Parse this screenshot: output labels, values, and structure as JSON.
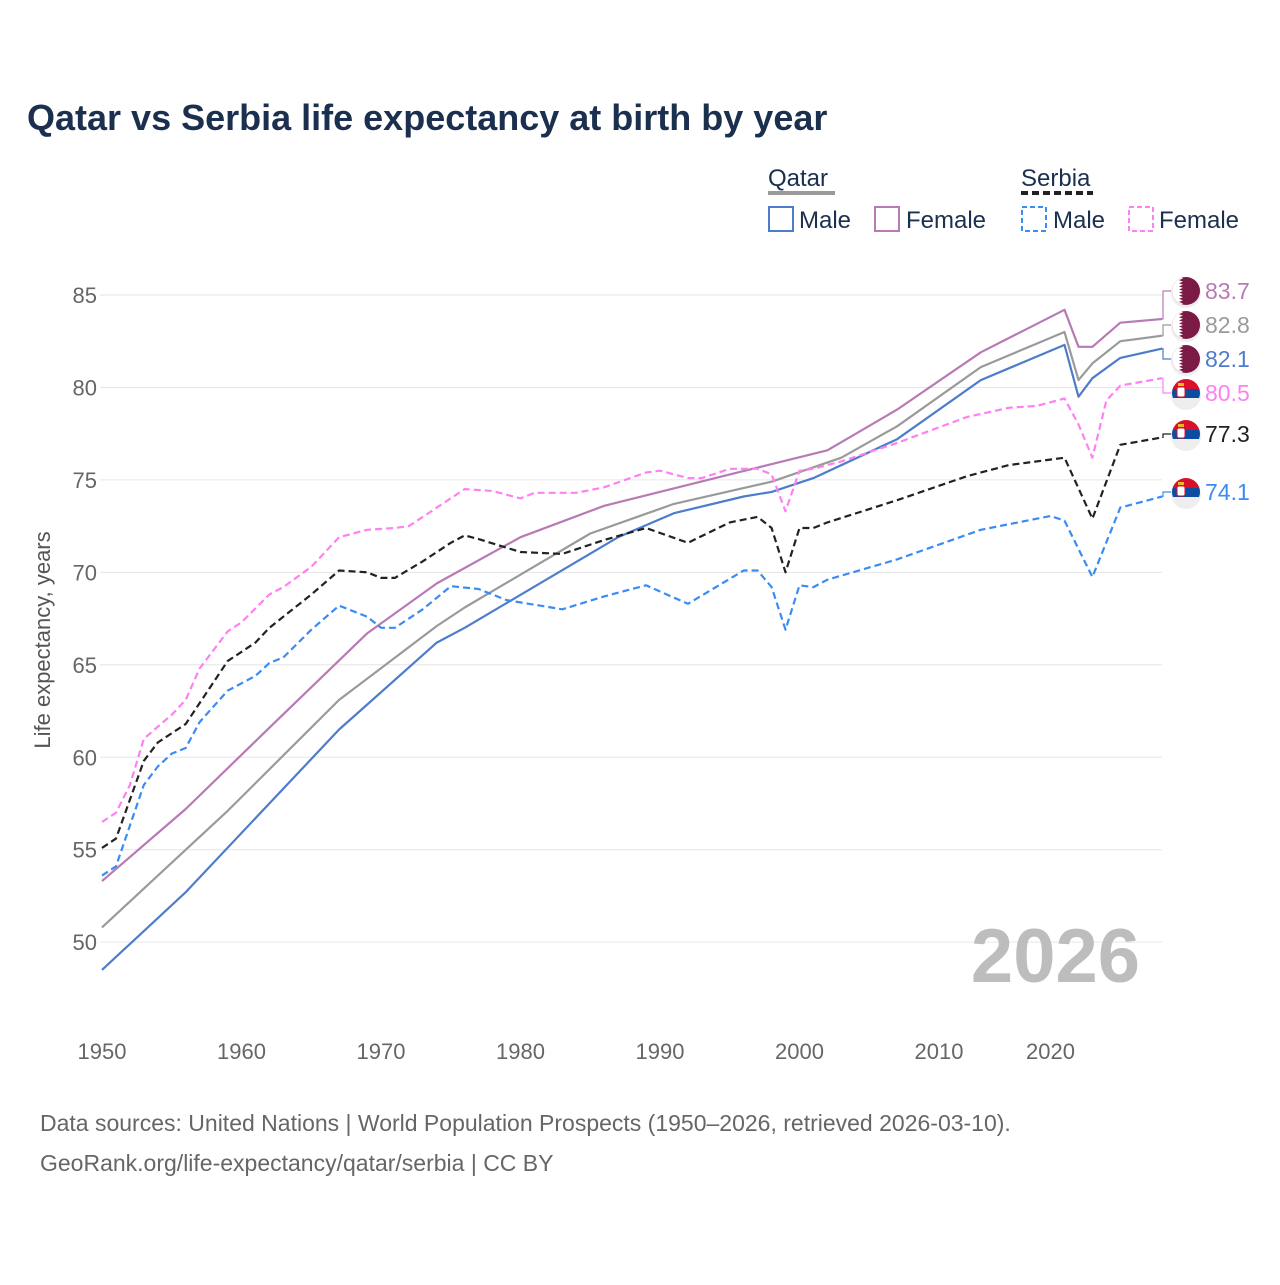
{
  "chart_data": {
    "type": "line",
    "title": "Qatar vs Serbia life expectancy at birth by year",
    "xlabel": "",
    "ylabel": "Life expectancy, years",
    "xlim": [
      1950,
      2026
    ],
    "ylim": [
      47,
      87
    ],
    "x_ticks": [
      "1950",
      "1960",
      "1970",
      "1980",
      "1990",
      "2000",
      "2010",
      "2020"
    ],
    "y_ticks": [
      "50",
      "55",
      "60",
      "65",
      "70",
      "75",
      "80",
      "85"
    ],
    "grid": true,
    "watermark_year": "2026",
    "legend": {
      "placement": "top-right",
      "groups": [
        {
          "country": "Qatar",
          "items": [
            "Male",
            "Female"
          ]
        },
        {
          "country": "Serbia",
          "items": [
            "Male",
            "Female"
          ]
        }
      ]
    },
    "series": [
      {
        "name": "Qatar Female",
        "country": "Qatar",
        "color": "#b77ab5",
        "dashed": false,
        "end_label": "83.7",
        "points": [
          [
            1950,
            53.3
          ],
          [
            1956,
            57.2
          ],
          [
            1962,
            61.6
          ],
          [
            1969,
            66.7
          ],
          [
            1974,
            69.4
          ],
          [
            1980,
            71.9
          ],
          [
            1986,
            73.6
          ],
          [
            1995,
            75.3
          ],
          [
            2002,
            76.6
          ],
          [
            2007,
            78.8
          ],
          [
            2013,
            81.9
          ],
          [
            2019,
            84.2
          ],
          [
            2020,
            82.2
          ],
          [
            2021,
            82.2
          ],
          [
            2023,
            83.5
          ],
          [
            2026,
            83.7
          ]
        ]
      },
      {
        "name": "Qatar Total",
        "country": "Qatar",
        "color": "#9a9a9a",
        "dashed": false,
        "end_label": "82.8",
        "points": [
          [
            1950,
            50.8
          ],
          [
            1959,
            57.1
          ],
          [
            1967,
            63.1
          ],
          [
            1974,
            67.1
          ],
          [
            1976,
            68.1
          ],
          [
            1985,
            72.1
          ],
          [
            1991,
            73.7
          ],
          [
            1998,
            74.9
          ],
          [
            2003,
            76.2
          ],
          [
            2007,
            77.9
          ],
          [
            2013,
            81.1
          ],
          [
            2019,
            83.0
          ],
          [
            2020,
            80.4
          ],
          [
            2021,
            81.3
          ],
          [
            2023,
            82.5
          ],
          [
            2026,
            82.8
          ]
        ]
      },
      {
        "name": "Qatar Male",
        "country": "Qatar",
        "color": "#4e7ccc",
        "dashed": false,
        "end_label": "82.1",
        "points": [
          [
            1950,
            48.5
          ],
          [
            1956,
            52.7
          ],
          [
            1967,
            61.5
          ],
          [
            1974,
            66.2
          ],
          [
            1976,
            67.0
          ],
          [
            1987,
            71.9
          ],
          [
            1991,
            73.2
          ],
          [
            1996,
            74.1
          ],
          [
            1998,
            74.35
          ],
          [
            2001,
            75.1
          ],
          [
            2007,
            77.2
          ],
          [
            2013,
            80.4
          ],
          [
            2019,
            82.3
          ],
          [
            2020,
            79.5
          ],
          [
            2021,
            80.5
          ],
          [
            2023,
            81.6
          ],
          [
            2026,
            82.1
          ]
        ]
      },
      {
        "name": "Serbia Female",
        "country": "Serbia",
        "color": "#ff80f0",
        "dashed": true,
        "end_label": "80.5",
        "points": [
          [
            1950,
            56.5
          ],
          [
            1951,
            57.0
          ],
          [
            1952,
            58.5
          ],
          [
            1953,
            61.0
          ],
          [
            1955,
            62.3
          ],
          [
            1956,
            63.1
          ],
          [
            1957,
            64.8
          ],
          [
            1959,
            66.8
          ],
          [
            1960,
            67.3
          ],
          [
            1962,
            68.8
          ],
          [
            1963,
            69.2
          ],
          [
            1965,
            70.3
          ],
          [
            1967,
            71.9
          ],
          [
            1969,
            72.3
          ],
          [
            1971,
            72.4
          ],
          [
            1972,
            72.5
          ],
          [
            1974,
            73.5
          ],
          [
            1976,
            74.5
          ],
          [
            1978,
            74.4
          ],
          [
            1980,
            74.0
          ],
          [
            1981,
            74.3
          ],
          [
            1984,
            74.3
          ],
          [
            1986,
            74.6
          ],
          [
            1989,
            75.4
          ],
          [
            1990,
            75.5
          ],
          [
            1992,
            75.1
          ],
          [
            1993,
            75.1
          ],
          [
            1995,
            75.6
          ],
          [
            1997,
            75.6
          ],
          [
            1998,
            75.3
          ],
          [
            1999,
            73.3
          ],
          [
            2000,
            75.5
          ],
          [
            2001,
            75.6
          ],
          [
            2003,
            76.0
          ],
          [
            2007,
            77.0
          ],
          [
            2012,
            78.4
          ],
          [
            2015,
            78.9
          ],
          [
            2017,
            79.0
          ],
          [
            2019,
            79.4
          ],
          [
            2020,
            78.0
          ],
          [
            2021,
            76.2
          ],
          [
            2022,
            79.3
          ],
          [
            2023,
            80.1
          ],
          [
            2026,
            80.5
          ]
        ]
      },
      {
        "name": "Serbia Total",
        "country": "Serbia",
        "color": "#222222",
        "dashed": true,
        "end_label": "77.3",
        "points": [
          [
            1950,
            55.1
          ],
          [
            1951,
            55.6
          ],
          [
            1953,
            59.8
          ],
          [
            1954,
            60.8
          ],
          [
            1956,
            61.8
          ],
          [
            1959,
            65.2
          ],
          [
            1961,
            66.2
          ],
          [
            1962,
            67.0
          ],
          [
            1965,
            68.8
          ],
          [
            1967,
            70.1
          ],
          [
            1969,
            70.0
          ],
          [
            1970,
            69.7
          ],
          [
            1971,
            69.7
          ],
          [
            1973,
            70.6
          ],
          [
            1975,
            71.6
          ],
          [
            1976,
            72.0
          ],
          [
            1977,
            71.8
          ],
          [
            1980,
            71.1
          ],
          [
            1983,
            71.0
          ],
          [
            1986,
            71.75
          ],
          [
            1989,
            72.4
          ],
          [
            1992,
            71.6
          ],
          [
            1995,
            72.7
          ],
          [
            1997,
            73.0
          ],
          [
            1998,
            72.4
          ],
          [
            1999,
            70.0
          ],
          [
            2000,
            72.4
          ],
          [
            2001,
            72.4
          ],
          [
            2002,
            72.7
          ],
          [
            2007,
            73.9
          ],
          [
            2012,
            75.2
          ],
          [
            2015,
            75.8
          ],
          [
            2019,
            76.2
          ],
          [
            2021,
            72.9
          ],
          [
            2023,
            76.9
          ],
          [
            2026,
            77.3
          ]
        ]
      },
      {
        "name": "Serbia Male",
        "country": "Serbia",
        "color": "#3b8bf5",
        "dashed": true,
        "end_label": "74.1",
        "points": [
          [
            1950,
            53.6
          ],
          [
            1951,
            54.1
          ],
          [
            1953,
            58.5
          ],
          [
            1954,
            59.5
          ],
          [
            1955,
            60.2
          ],
          [
            1956,
            60.5
          ],
          [
            1957,
            61.9
          ],
          [
            1959,
            63.6
          ],
          [
            1961,
            64.4
          ],
          [
            1962,
            65.1
          ],
          [
            1963,
            65.4
          ],
          [
            1965,
            66.9
          ],
          [
            1967,
            68.2
          ],
          [
            1969,
            67.6
          ],
          [
            1970,
            67.0
          ],
          [
            1971,
            67.0
          ],
          [
            1973,
            68.0
          ],
          [
            1975,
            69.25
          ],
          [
            1977,
            69.1
          ],
          [
            1979,
            68.5
          ],
          [
            1983,
            68.0
          ],
          [
            1986,
            68.7
          ],
          [
            1989,
            69.3
          ],
          [
            1992,
            68.3
          ],
          [
            1996,
            70.1
          ],
          [
            1997,
            70.1
          ],
          [
            1998,
            69.2
          ],
          [
            1999,
            66.9
          ],
          [
            2000,
            69.3
          ],
          [
            2001,
            69.2
          ],
          [
            2002,
            69.6
          ],
          [
            2007,
            70.7
          ],
          [
            2013,
            72.3
          ],
          [
            2018,
            73.05
          ],
          [
            2019,
            72.8
          ],
          [
            2021,
            69.75
          ],
          [
            2023,
            73.5
          ],
          [
            2026,
            74.1
          ]
        ]
      }
    ],
    "footer": [
      "Data sources: United Nations | World Population Prospects (1950–2026, retrieved 2026-03-10).",
      "GeoRank.org/life-expectancy/qatar/serbia | CC BY"
    ]
  }
}
